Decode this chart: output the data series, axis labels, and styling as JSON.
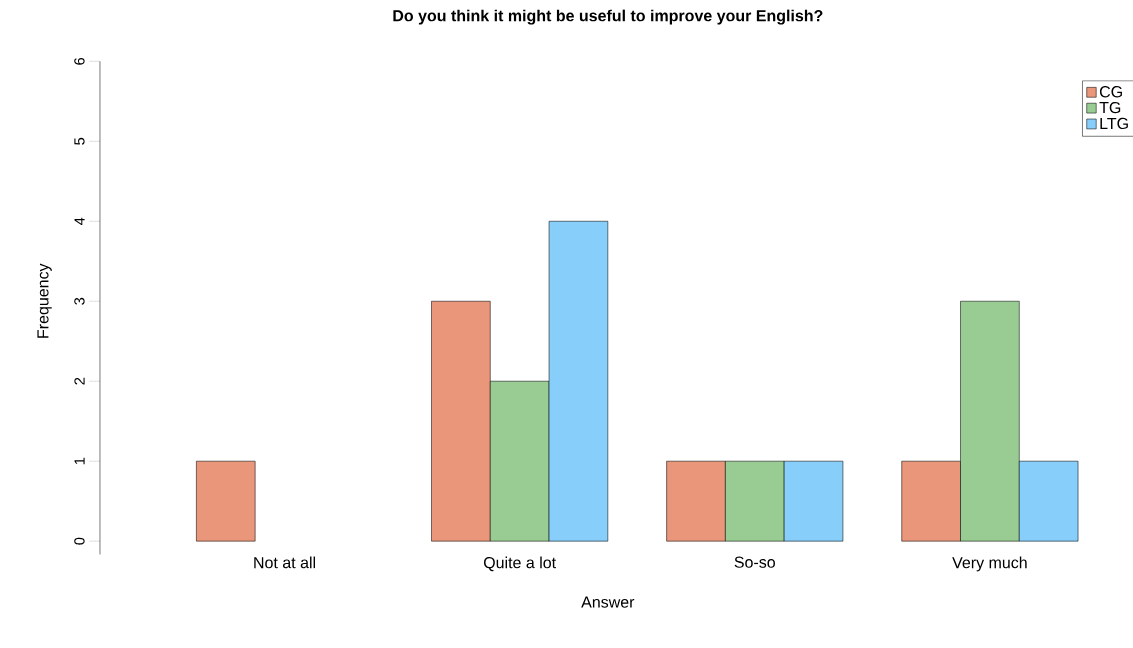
{
  "chart_data": {
    "type": "bar",
    "title": "Do you think it might be useful to improve your English?",
    "xlabel": "Answer",
    "ylabel": "Frequency",
    "categories": [
      "Not at all",
      "Quite a lot",
      "So-so",
      "Very much"
    ],
    "series": [
      {
        "name": "CG",
        "color": "#e9967a",
        "values": [
          1,
          3,
          1,
          1
        ]
      },
      {
        "name": "TG",
        "color": "#99cc93",
        "values": [
          0,
          2,
          1,
          3
        ]
      },
      {
        "name": "LTG",
        "color": "#87cefa",
        "values": [
          0,
          4,
          1,
          1
        ]
      }
    ],
    "ylim": [
      0,
      6
    ],
    "yticks": [
      0,
      1,
      2,
      3,
      4,
      5,
      6
    ],
    "legend": "top right",
    "grid": false
  }
}
